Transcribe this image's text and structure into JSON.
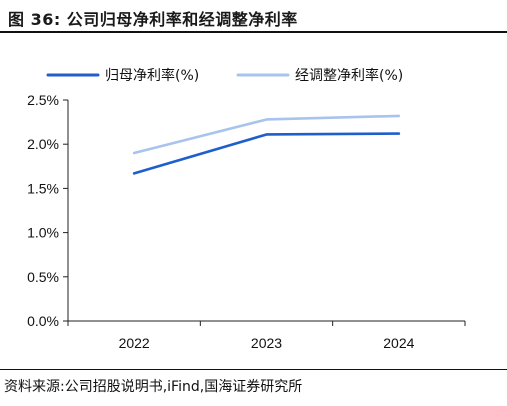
{
  "figure": {
    "title": "图 36:  公司归母净利率和经调整净利率",
    "source": "资料来源:公司招股说明书,iFind,国海证券研究所"
  },
  "chart_data": {
    "type": "line",
    "title": "",
    "xlabel": "",
    "ylabel": "",
    "categories": [
      "2022",
      "2023",
      "2024"
    ],
    "series": [
      {
        "name": "归母净利率(%)",
        "color": "#1f5fcc",
        "values": [
          1.67,
          2.11,
          2.12
        ]
      },
      {
        "name": "经调整净利率(%)",
        "color": "#a8c4ec",
        "values": [
          1.9,
          2.28,
          2.32
        ]
      }
    ],
    "ylim": [
      0,
      2.5
    ],
    "yticks": [
      0.0,
      0.5,
      1.0,
      1.5,
      2.0,
      2.5
    ],
    "ytick_labels": [
      "0.0%",
      "0.5%",
      "1.0%",
      "1.5%",
      "2.0%",
      "2.5%"
    ],
    "grid": false,
    "legend_position": "top"
  }
}
